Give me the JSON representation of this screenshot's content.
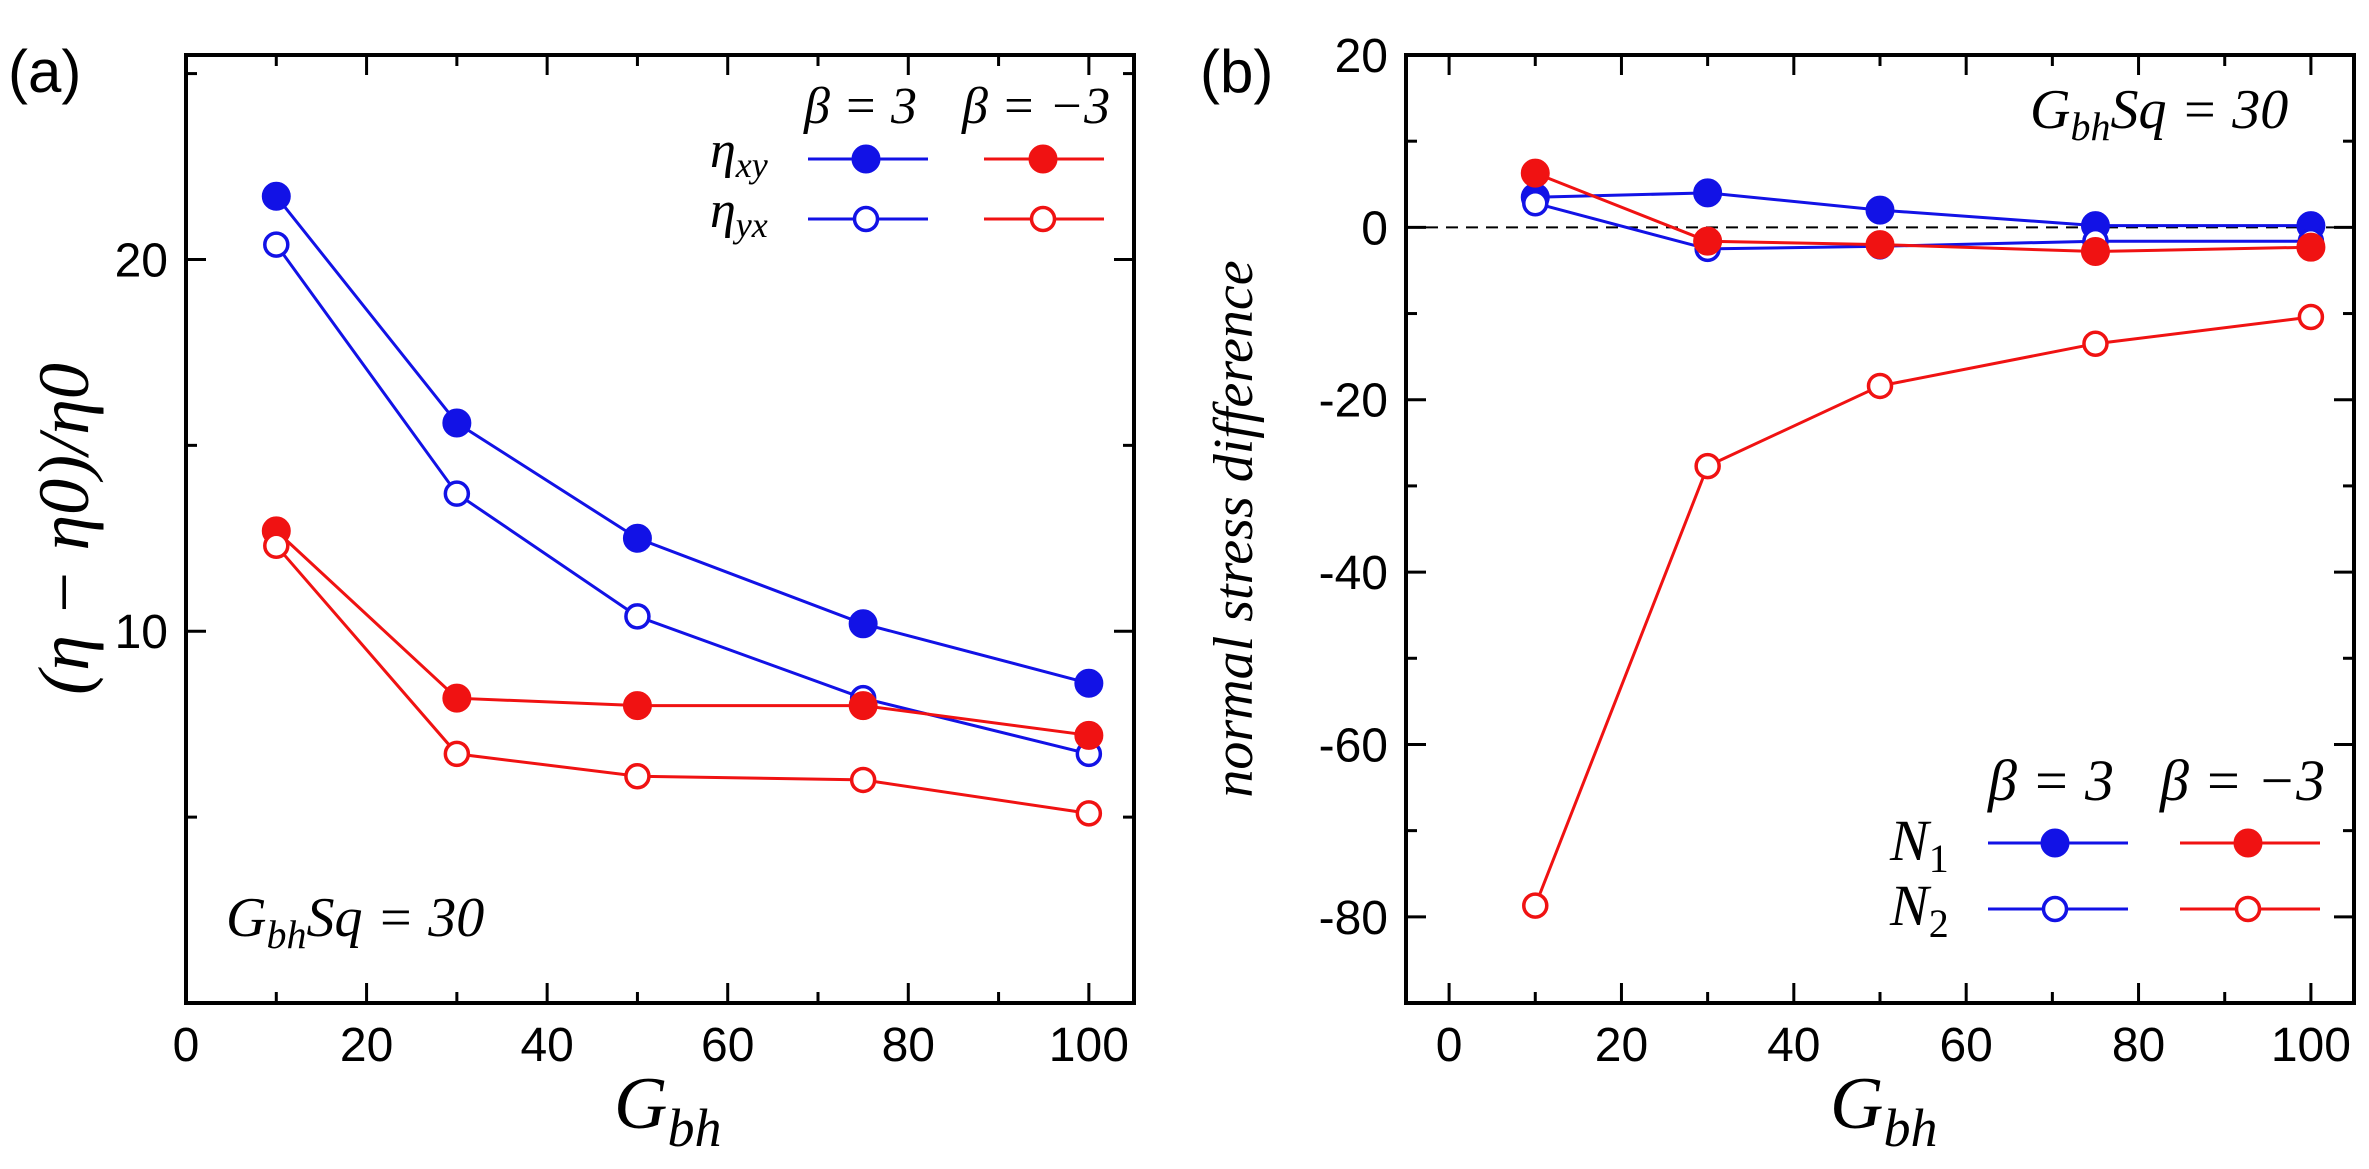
{
  "colors": {
    "blue": "#1212e6",
    "red": "#f01212",
    "axis": "#000000"
  },
  "chart_data": [
    {
      "type": "line",
      "panel_label": "(a)",
      "xlabel": {
        "main": "G",
        "sub": "bh"
      },
      "ylabel": "(η − η0)/η0",
      "annotation": {
        "main": "G",
        "sub": "bh",
        "rest": "Sq = 30"
      },
      "xlim": [
        0,
        105
      ],
      "ylim": [
        0,
        25.5
      ],
      "xticks": [
        0,
        20,
        40,
        60,
        80,
        100
      ],
      "yticks": [
        10,
        20
      ],
      "legend": {
        "position": "top-right",
        "col_headers": [
          "β = 3",
          "β = −3"
        ],
        "rows": [
          {
            "main": "η",
            "sub": "xy"
          },
          {
            "main": "η",
            "sub": "yx"
          }
        ]
      },
      "x": [
        10,
        30,
        50,
        75,
        100
      ],
      "series": [
        {
          "name": "η_xy, β = 3",
          "color": "blue",
          "filled": true,
          "values": [
            21.7,
            15.6,
            12.5,
            10.2,
            8.6
          ]
        },
        {
          "name": "η_yx, β = 3",
          "color": "blue",
          "filled": false,
          "values": [
            20.4,
            13.7,
            10.4,
            8.2,
            6.7
          ]
        },
        {
          "name": "η_xy, β = −3",
          "color": "red",
          "filled": true,
          "values": [
            12.7,
            8.2,
            8.0,
            8.0,
            7.2
          ]
        },
        {
          "name": "η_yx, β = −3",
          "color": "red",
          "filled": false,
          "values": [
            12.3,
            6.7,
            6.1,
            6.0,
            5.1
          ]
        }
      ]
    },
    {
      "type": "line",
      "panel_label": "(b)",
      "xlabel": {
        "main": "G",
        "sub": "bh"
      },
      "ylabel": "normal stress difference",
      "annotation": {
        "main": "G",
        "sub": "bh",
        "rest": "Sq = 30"
      },
      "xlim": [
        -5,
        105
      ],
      "ylim": [
        -90,
        20
      ],
      "xticks": [
        0,
        20,
        40,
        60,
        80,
        100
      ],
      "yticks": [
        -80,
        -60,
        -40,
        -20,
        0,
        20
      ],
      "zero_line": true,
      "legend": {
        "position": "bottom-right",
        "col_headers": [
          "β = 3",
          "β = −3"
        ],
        "rows": [
          {
            "main": "N",
            "sub": "1"
          },
          {
            "main": "N",
            "sub": "2"
          }
        ]
      },
      "x": [
        10,
        30,
        50,
        75,
        100
      ],
      "series": [
        {
          "name": "N1, β = 3",
          "color": "blue",
          "filled": true,
          "values": [
            3.5,
            4.0,
            2.0,
            0.2,
            0.2
          ]
        },
        {
          "name": "N2, β = 3",
          "color": "blue",
          "filled": false,
          "values": [
            2.8,
            -2.5,
            -2.2,
            -1.6,
            -1.6
          ]
        },
        {
          "name": "N1, β = −3",
          "color": "red",
          "filled": true,
          "values": [
            6.3,
            -1.6,
            -2.0,
            -2.8,
            -2.3
          ]
        },
        {
          "name": "N2, β = −3",
          "color": "red",
          "filled": false,
          "values": [
            -78.7,
            -27.7,
            -18.4,
            -13.5,
            -10.4
          ]
        }
      ]
    }
  ]
}
